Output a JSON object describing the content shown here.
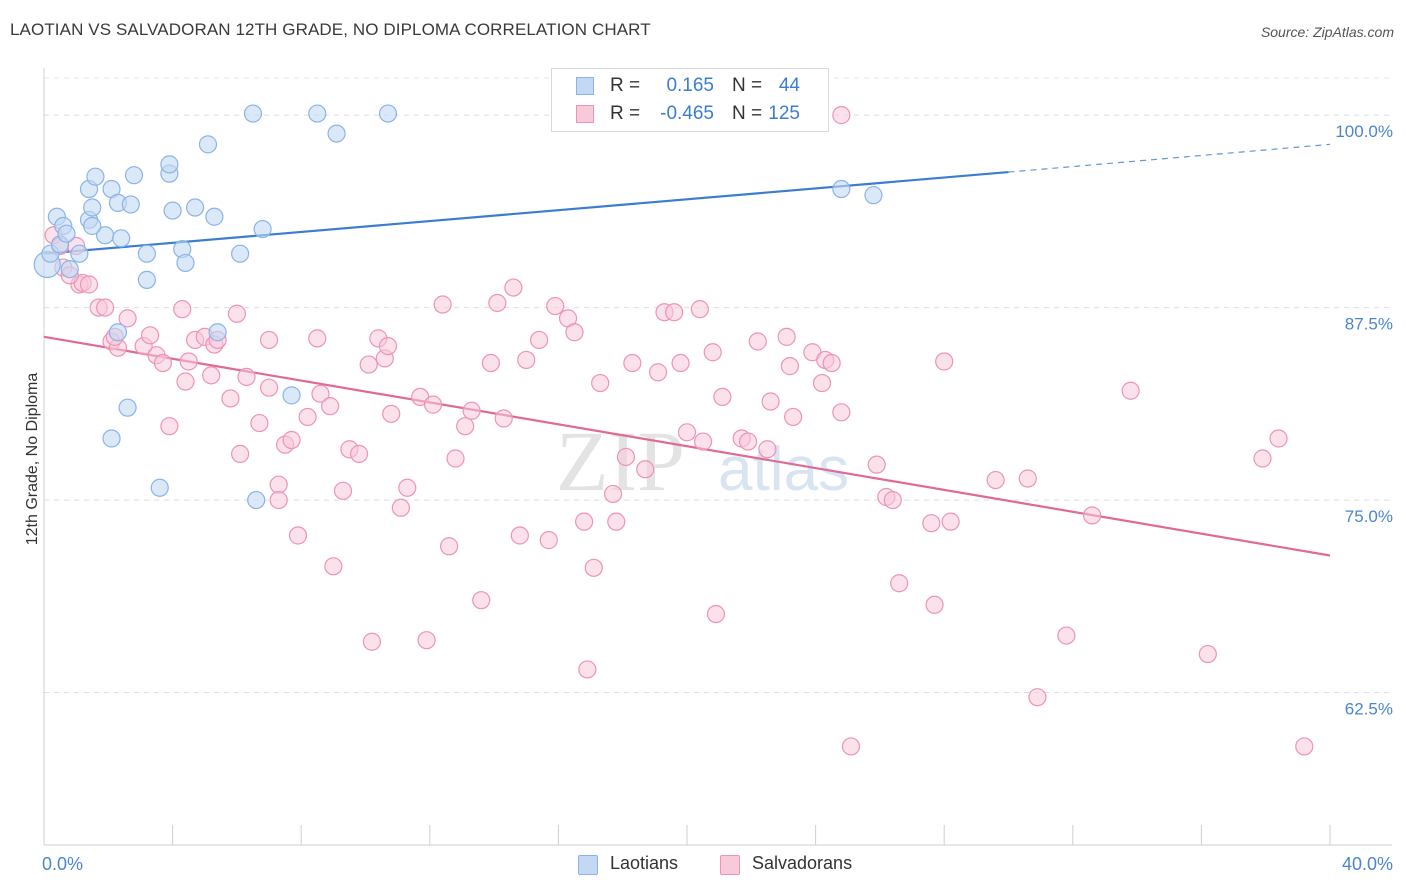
{
  "title": "LAOTIAN VS SALVADORAN 12TH GRADE, NO DIPLOMA CORRELATION CHART",
  "source": "Source: ZipAtlas.com",
  "colors": {
    "blue": "#8ab4e8",
    "blue_fill": "#c3d8f3",
    "blue_line": "#3b7dd0",
    "pink": "#ee94b2",
    "pink_fill": "#f8c9da",
    "pink_line": "#e06a94",
    "axis_text": "#4a86d0"
  },
  "legend": {
    "series1": {
      "r_label": "R =",
      "r_value": "0.165",
      "n_label": "N =",
      "n_value": "44"
    },
    "series2": {
      "r_label": "R =",
      "r_value": "-0.465",
      "n_label": "N =",
      "n_value": "125"
    }
  },
  "bottom_legend": [
    "Laotians",
    "Salvadorans"
  ],
  "watermark": {
    "part1": "ZIP",
    "part2": "atlas"
  },
  "chart_data": {
    "type": "scatter",
    "title": "LAOTIAN VS SALVADORAN 12TH GRADE, NO DIPLOMA CORRELATION CHART",
    "xlabel": "",
    "ylabel": "12th Grade, No Diploma",
    "xlim": [
      0,
      40
    ],
    "ylim": [
      52.6,
      102.8
    ],
    "x_tick_labels": [
      "0.0%",
      "40.0%"
    ],
    "y_ticks": [
      62.5,
      75.0,
      87.5,
      100.0
    ],
    "y_tick_labels": [
      "62.5%",
      "75.0%",
      "87.5%",
      "100.0%"
    ],
    "series": [
      {
        "name": "Laotians",
        "r": 0.165,
        "n": 44,
        "trend": {
          "x0": 0,
          "y0": 91.0,
          "x1": 30,
          "y1": 96.3,
          "x_ext": 40,
          "y_ext": 98.1
        },
        "points": [
          [
            0.1,
            90.3
          ],
          [
            0.2,
            91.0
          ],
          [
            0.4,
            93.4
          ],
          [
            0.5,
            91.6
          ],
          [
            0.6,
            92.8
          ],
          [
            0.7,
            92.3
          ],
          [
            0.8,
            90.0
          ],
          [
            1.1,
            91.0
          ],
          [
            1.4,
            95.2
          ],
          [
            1.4,
            93.2
          ],
          [
            1.5,
            94.0
          ],
          [
            1.6,
            96.0
          ],
          [
            1.9,
            92.2
          ],
          [
            2.1,
            95.2
          ],
          [
            2.3,
            94.3
          ],
          [
            2.8,
            96.1
          ],
          [
            2.7,
            94.2
          ],
          [
            2.3,
            85.9
          ],
          [
            3.2,
            91.0
          ],
          [
            3.2,
            89.3
          ],
          [
            3.9,
            96.2
          ],
          [
            3.9,
            96.8
          ],
          [
            4.0,
            93.8
          ],
          [
            4.3,
            91.3
          ],
          [
            4.4,
            90.4
          ],
          [
            4.7,
            94.0
          ],
          [
            5.1,
            98.1
          ],
          [
            5.3,
            93.4
          ],
          [
            5.4,
            85.9
          ],
          [
            6.1,
            91.0
          ],
          [
            6.5,
            100.1
          ],
          [
            6.8,
            92.6
          ],
          [
            7.7,
            81.8
          ],
          [
            8.5,
            100.1
          ],
          [
            9.1,
            98.8
          ],
          [
            10.7,
            100.1
          ],
          [
            2.6,
            81.0
          ],
          [
            2.1,
            79.0
          ],
          [
            3.6,
            75.8
          ],
          [
            6.6,
            75.0
          ],
          [
            24.8,
            95.2
          ],
          [
            25.8,
            94.8
          ],
          [
            1.5,
            92.8
          ],
          [
            2.4,
            92.0
          ]
        ]
      },
      {
        "name": "Salvadorans",
        "r": -0.465,
        "n": 125,
        "trend": {
          "x0": 0,
          "y0": 85.6,
          "x1": 40,
          "y1": 71.4
        },
        "points": [
          [
            0.3,
            92.2
          ],
          [
            0.5,
            91.5
          ],
          [
            0.6,
            90.1
          ],
          [
            1.1,
            89.0
          ],
          [
            1.2,
            89.1
          ],
          [
            1.4,
            89.0
          ],
          [
            1.7,
            87.5
          ],
          [
            1.9,
            87.5
          ],
          [
            2.1,
            85.3
          ],
          [
            2.3,
            84.9
          ],
          [
            2.6,
            86.8
          ],
          [
            3.1,
            85.0
          ],
          [
            3.3,
            85.7
          ],
          [
            3.5,
            84.4
          ],
          [
            3.7,
            83.9
          ],
          [
            3.9,
            79.8
          ],
          [
            4.3,
            87.4
          ],
          [
            4.4,
            82.7
          ],
          [
            4.7,
            85.4
          ],
          [
            5.0,
            85.6
          ],
          [
            5.2,
            83.1
          ],
          [
            5.3,
            85.1
          ],
          [
            5.4,
            85.4
          ],
          [
            5.8,
            81.6
          ],
          [
            6.0,
            87.1
          ],
          [
            6.1,
            78.0
          ],
          [
            6.3,
            83.0
          ],
          [
            6.7,
            80.0
          ],
          [
            7.0,
            85.4
          ],
          [
            7.0,
            82.3
          ],
          [
            7.3,
            76.0
          ],
          [
            7.5,
            78.6
          ],
          [
            7.7,
            78.9
          ],
          [
            7.9,
            72.7
          ],
          [
            8.2,
            80.4
          ],
          [
            8.5,
            85.5
          ],
          [
            8.6,
            81.9
          ],
          [
            8.9,
            81.1
          ],
          [
            9.0,
            70.7
          ],
          [
            9.3,
            75.6
          ],
          [
            9.5,
            78.3
          ],
          [
            9.8,
            78.0
          ],
          [
            10.1,
            83.8
          ],
          [
            10.2,
            65.8
          ],
          [
            10.4,
            85.5
          ],
          [
            10.6,
            84.2
          ],
          [
            10.7,
            85.0
          ],
          [
            10.8,
            80.6
          ],
          [
            11.1,
            74.5
          ],
          [
            11.3,
            75.8
          ],
          [
            11.7,
            81.7
          ],
          [
            11.9,
            65.9
          ],
          [
            12.1,
            81.2
          ],
          [
            12.4,
            87.7
          ],
          [
            12.6,
            72.0
          ],
          [
            12.8,
            77.7
          ],
          [
            13.1,
            79.8
          ],
          [
            13.3,
            80.8
          ],
          [
            13.6,
            68.5
          ],
          [
            13.9,
            83.9
          ],
          [
            14.1,
            87.8
          ],
          [
            14.3,
            80.3
          ],
          [
            14.6,
            88.8
          ],
          [
            14.8,
            72.7
          ],
          [
            15.0,
            84.1
          ],
          [
            15.4,
            85.4
          ],
          [
            15.7,
            72.4
          ],
          [
            15.9,
            87.6
          ],
          [
            16.3,
            86.8
          ],
          [
            16.5,
            85.9
          ],
          [
            16.8,
            73.6
          ],
          [
            16.9,
            64.0
          ],
          [
            17.1,
            70.6
          ],
          [
            17.3,
            82.6
          ],
          [
            17.7,
            75.4
          ],
          [
            17.8,
            73.6
          ],
          [
            18.1,
            77.8
          ],
          [
            18.3,
            83.9
          ],
          [
            18.7,
            77.0
          ],
          [
            19.1,
            83.3
          ],
          [
            19.3,
            87.2
          ],
          [
            19.6,
            87.2
          ],
          [
            19.8,
            83.9
          ],
          [
            20.0,
            79.4
          ],
          [
            20.4,
            87.4
          ],
          [
            20.5,
            78.8
          ],
          [
            20.8,
            84.6
          ],
          [
            20.9,
            67.6
          ],
          [
            21.1,
            81.7
          ],
          [
            21.7,
            79.0
          ],
          [
            21.9,
            78.8
          ],
          [
            22.2,
            85.3
          ],
          [
            22.5,
            78.3
          ],
          [
            22.6,
            81.4
          ],
          [
            23.1,
            85.6
          ],
          [
            23.2,
            83.7
          ],
          [
            23.3,
            80.4
          ],
          [
            23.9,
            84.6
          ],
          [
            24.2,
            82.6
          ],
          [
            24.3,
            84.1
          ],
          [
            24.5,
            83.9
          ],
          [
            24.8,
            80.7
          ],
          [
            24.8,
            100.0
          ],
          [
            25.1,
            59.0
          ],
          [
            25.9,
            77.3
          ],
          [
            26.2,
            75.2
          ],
          [
            26.4,
            75.0
          ],
          [
            26.6,
            69.6
          ],
          [
            27.6,
            73.5
          ],
          [
            27.7,
            68.2
          ],
          [
            28.0,
            84.0
          ],
          [
            28.2,
            73.6
          ],
          [
            29.6,
            76.3
          ],
          [
            30.6,
            76.4
          ],
          [
            30.9,
            62.2
          ],
          [
            31.8,
            66.2
          ],
          [
            32.6,
            74.0
          ],
          [
            33.8,
            82.1
          ],
          [
            36.2,
            65.0
          ],
          [
            37.9,
            77.7
          ],
          [
            38.4,
            79.0
          ],
          [
            39.2,
            59.0
          ],
          [
            0.8,
            89.6
          ],
          [
            1.0,
            91.5
          ],
          [
            2.2,
            85.6
          ],
          [
            4.5,
            84.0
          ],
          [
            7.3,
            75.0
          ]
        ]
      }
    ]
  }
}
